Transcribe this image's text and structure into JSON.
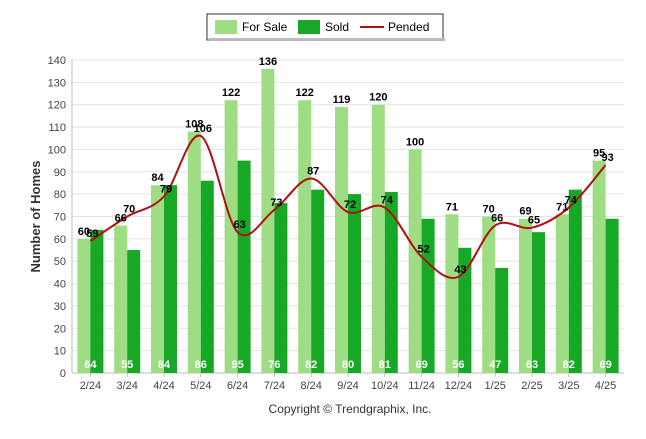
{
  "chart_data": {
    "type": "bar",
    "title": "",
    "ylabel": "Number of Homes",
    "xlabel": "",
    "ylim": [
      0,
      140
    ],
    "yticks": [
      0,
      10,
      20,
      30,
      40,
      50,
      60,
      70,
      80,
      90,
      100,
      110,
      120,
      130,
      140
    ],
    "grid": true,
    "legend_position": "top-center",
    "categories": [
      "2/24",
      "3/24",
      "4/24",
      "5/24",
      "6/24",
      "7/24",
      "8/24",
      "9/24",
      "10/24",
      "11/24",
      "12/24",
      "1/25",
      "2/25",
      "3/25",
      "4/25"
    ],
    "series": [
      {
        "name": "For Sale",
        "type": "bar",
        "color": "#9edd84",
        "values": [
          60,
          66,
          84,
          108,
          122,
          136,
          122,
          119,
          120,
          100,
          71,
          70,
          69,
          71,
          95
        ]
      },
      {
        "name": "Sold",
        "type": "bar",
        "color": "#17a825",
        "values": [
          64,
          55,
          84,
          86,
          95,
          76,
          82,
          80,
          81,
          69,
          56,
          47,
          63,
          82,
          69
        ]
      },
      {
        "name": "Pended",
        "type": "line",
        "color": "#b01010",
        "values": [
          59,
          70,
          79,
          106,
          63,
          73,
          87,
          72,
          74,
          52,
          43,
          66,
          65,
          74,
          93
        ]
      }
    ]
  },
  "footer": {
    "copyright": "Copyright © Trendgraphix, Inc."
  }
}
